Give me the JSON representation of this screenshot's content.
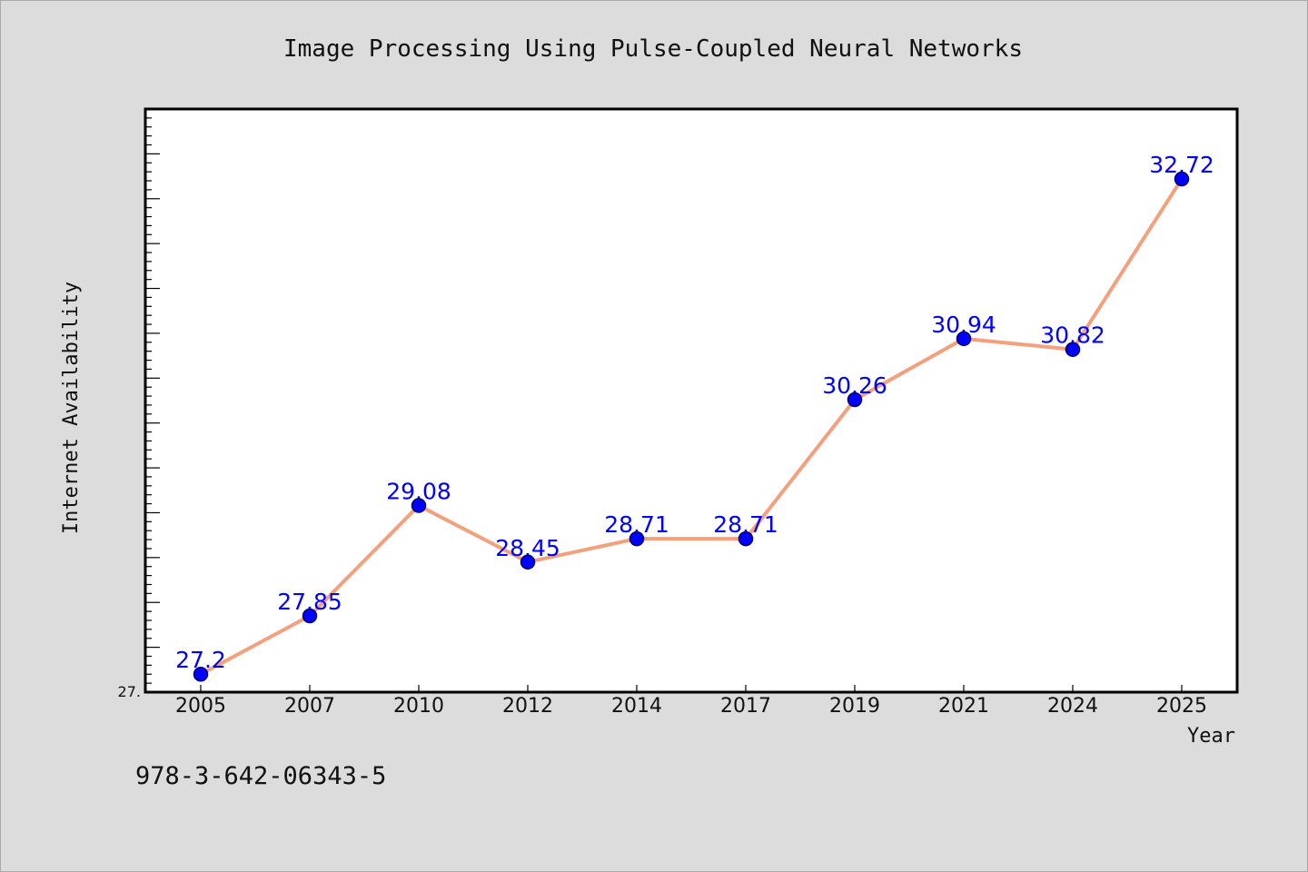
{
  "chart_data": {
    "type": "line",
    "title": "Image Processing Using Pulse-Coupled Neural Networks",
    "xlabel": "Year",
    "ylabel": "Internet Availability",
    "categories": [
      "2005",
      "2007",
      "2010",
      "2012",
      "2014",
      "2017",
      "2019",
      "2021",
      "2024",
      "2025"
    ],
    "series": [
      {
        "values": [
          27.2,
          27.85,
          29.08,
          28.45,
          28.71,
          28.71,
          30.26,
          30.94,
          30.82,
          32.72
        ],
        "labels": [
          "27.2",
          "27.85",
          "29.08",
          "28.45",
          "28.71",
          "28.71",
          "30.26",
          "30.94",
          "30.82",
          "32.72"
        ]
      }
    ],
    "ylim": [
      27.0,
      33.5
    ],
    "ytick_label": "27.",
    "grid": false,
    "legend": "none",
    "colors": {
      "line": "#f4a07c",
      "marker": "#0000ff",
      "marker_edge": "#000066",
      "data_label": "#0000ff",
      "background": "#dcdcdc",
      "plot_background": "#ffffff"
    }
  },
  "footer": {
    "isbn": "978-3-642-06343-5"
  }
}
